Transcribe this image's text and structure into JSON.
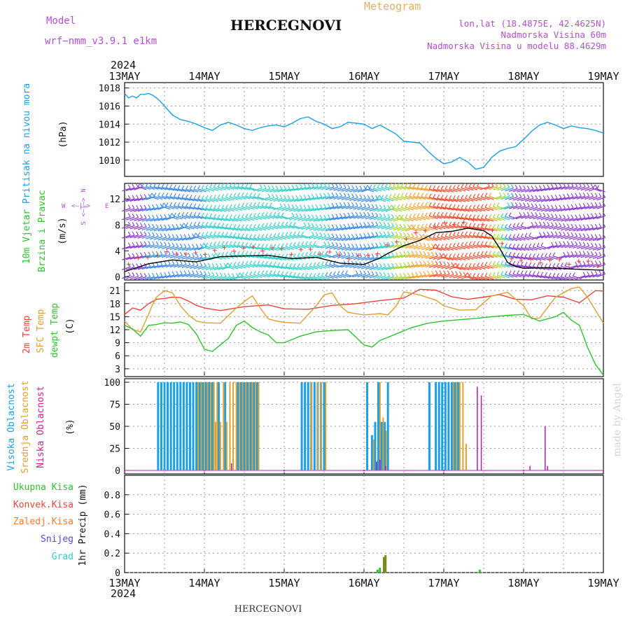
{
  "header": {
    "model_label": "Model",
    "model_name": "wrf−nmm_v3.9.1 e1km",
    "location": "HERCEGNOVI",
    "product": "Meteogram",
    "lonlat": "lon,lat (18.4875E, 42.4625N)",
    "elevation": "Nadmorska Visina 60m",
    "model_elevation": "Nadmorska Visina u modelu 88.4629m"
  },
  "footer": {
    "location": "HERCEGNOVI",
    "watermark": "made by Angel"
  },
  "time_axis": {
    "year": "2024",
    "labels": [
      "13MAY",
      "14MAY",
      "15MAY",
      "16MAY",
      "17MAY",
      "18MAY",
      "19MAY"
    ]
  },
  "wind_compass": {
    "north": "N",
    "west": "W",
    "east": "E",
    "south": "S",
    "arrows_we": "<—|—>",
    "arrows_ns": "<—|—>"
  },
  "colors": {
    "pressure": "#1aa0e6",
    "temp2m": "#e8443a",
    "sfc_temp": "#e0a030",
    "dewpt": "#2ec42e",
    "high_cloud": "#1aa0e6",
    "mid_cloud": "#e0a030",
    "low_cloud": "#b01eb0",
    "total_precip": "#2ec42e",
    "conv_precip": "#e8443a",
    "frozen_precip": "#f07c30",
    "snow": "#4a4ae6",
    "hail": "#33cccc",
    "wind_speed_line": "#000000",
    "gust_marks": "#e8443a",
    "label_purple": "#b050d0",
    "meteogram_orange": "#e0b060"
  },
  "chart_data": [
    {
      "id": "pressure",
      "type": "line",
      "ylabel": "(hPa)",
      "side_label": "Pritisak na nivou mora",
      "ylim": [
        1008.2,
        1018.6
      ],
      "yticks": [
        1010,
        1012,
        1014,
        1016,
        1018
      ],
      "grid": true,
      "series": [
        {
          "color_key": "pressure",
          "x": [
            0,
            0.05,
            0.1,
            0.15,
            0.2,
            0.25,
            0.3,
            0.35,
            0.4,
            0.45,
            0.5,
            0.6,
            0.7,
            0.8,
            0.9,
            1.0,
            1.1,
            1.2,
            1.3,
            1.4,
            1.5,
            1.6,
            1.7,
            1.8,
            1.9,
            2.0,
            2.1,
            2.2,
            2.3,
            2.4,
            2.5,
            2.6,
            2.7,
            2.8,
            2.9,
            3.0,
            3.1,
            3.2,
            3.3,
            3.4,
            3.5,
            3.6,
            3.7,
            3.8,
            3.9,
            4.0,
            4.1,
            4.2,
            4.3,
            4.4,
            4.5,
            4.6,
            4.7,
            4.8,
            4.9,
            5.0,
            5.1,
            5.2,
            5.3,
            5.4,
            5.5,
            5.6,
            5.7,
            5.8,
            5.9,
            6.0
          ],
          "y": [
            1017.4,
            1016.9,
            1017.1,
            1016.9,
            1017.3,
            1017.3,
            1017.4,
            1017.2,
            1016.9,
            1016.5,
            1016.0,
            1015.0,
            1014.5,
            1014.3,
            1014.0,
            1013.6,
            1013.3,
            1013.9,
            1014.2,
            1013.9,
            1013.5,
            1013.3,
            1013.6,
            1013.8,
            1013.9,
            1013.7,
            1014.1,
            1014.6,
            1014.8,
            1014.3,
            1014.0,
            1013.5,
            1013.7,
            1014.2,
            1014.1,
            1014.0,
            1013.5,
            1013.9,
            1013.4,
            1012.9,
            1012.1,
            1012.0,
            1011.9,
            1011.0,
            1010.2,
            1009.6,
            1009.8,
            1010.3,
            1009.8,
            1009.0,
            1009.2,
            1010.3,
            1011.0,
            1011.3,
            1011.5,
            1012.3,
            1013.2,
            1013.9,
            1014.2,
            1013.9,
            1013.5,
            1013.8,
            1013.6,
            1013.5,
            1013.3,
            1013.0
          ]
        }
      ]
    },
    {
      "id": "wind",
      "type": "line",
      "ylabel": "(m/s)",
      "side_label_1": "10m Vjetar",
      "side_label_2": "Brzina i Pravac",
      "ylim": [
        -0.5,
        14.4
      ],
      "yticks": [
        0,
        4,
        8,
        12
      ],
      "grid": false,
      "series": [
        {
          "color_key": "wind_speed_line",
          "x": [
            0,
            0.3,
            0.6,
            0.9,
            1.2,
            1.5,
            1.8,
            2.1,
            2.4,
            2.7,
            3.0,
            3.2,
            3.3,
            3.5,
            3.7,
            3.9,
            4.1,
            4.3,
            4.5,
            4.6,
            4.7,
            4.8,
            4.9,
            5.0,
            5.3,
            5.6,
            6.0
          ],
          "y": [
            0.8,
            2.0,
            2.6,
            2.3,
            3.1,
            3.2,
            3.3,
            2.8,
            3.0,
            2.1,
            1.9,
            2.9,
            3.6,
            4.8,
            5.6,
            6.8,
            7.0,
            7.5,
            7.1,
            6.3,
            4.4,
            2.2,
            1.6,
            1.3,
            1.4,
            1.2,
            1.0
          ]
        }
      ]
    },
    {
      "id": "temperature",
      "type": "line",
      "ylabel": "(C)",
      "side_label_1": "2m Temp",
      "side_label_2": "SFC Temp",
      "side_label_3": "dewpt Temp",
      "ylim": [
        1.2,
        22.8
      ],
      "yticks": [
        3,
        6,
        9,
        12,
        15,
        18,
        21
      ],
      "grid": true,
      "series": [
        {
          "color_key": "temp2m",
          "x": [
            0,
            0.1,
            0.2,
            0.3,
            0.4,
            0.5,
            0.6,
            0.7,
            0.8,
            0.9,
            1.0,
            1.2,
            1.5,
            1.8,
            2.0,
            2.3,
            2.6,
            2.9,
            3.2,
            3.5,
            3.7,
            3.9,
            4.1,
            4.3,
            4.5,
            4.7,
            4.9,
            5.1,
            5.3,
            5.5,
            5.7,
            5.9,
            6.0
          ],
          "y": [
            15.5,
            17.0,
            16.5,
            18.0,
            19.0,
            19.2,
            19.5,
            19.4,
            18.6,
            17.6,
            17.0,
            16.4,
            17.3,
            17.7,
            16.8,
            16.7,
            17.6,
            18.0,
            18.7,
            19.3,
            21.3,
            21.1,
            19.6,
            19.0,
            19.5,
            20.1,
            19.0,
            18.9,
            19.8,
            19.5,
            18.2,
            21.0,
            20.9
          ]
        },
        {
          "color_key": "sfc_temp",
          "x": [
            0,
            0.1,
            0.2,
            0.3,
            0.35,
            0.4,
            0.5,
            0.6,
            0.7,
            0.8,
            0.9,
            1.0,
            1.2,
            1.4,
            1.5,
            1.6,
            1.7,
            1.8,
            1.9,
            2.0,
            2.2,
            2.4,
            2.5,
            2.6,
            2.7,
            2.8,
            3.0,
            3.2,
            3.3,
            3.4,
            3.5,
            3.7,
            3.9,
            4.0,
            4.2,
            4.4,
            4.6,
            4.8,
            5.0,
            5.1,
            5.2,
            5.4,
            5.6,
            5.7,
            5.8,
            6.0
          ],
          "y": [
            14.0,
            12.0,
            11.5,
            15.5,
            17.8,
            19.5,
            21.0,
            20.5,
            17.5,
            15.4,
            14.0,
            13.6,
            13.5,
            17.0,
            18.5,
            19.8,
            17.0,
            14.5,
            14.0,
            13.7,
            13.5,
            17.5,
            20.0,
            20.5,
            17.5,
            16.0,
            15.4,
            15.7,
            15.4,
            17.4,
            20.7,
            20.0,
            18.8,
            17.5,
            16.5,
            16.6,
            19.8,
            20.6,
            17.5,
            14.5,
            14.7,
            19.5,
            21.5,
            21.8,
            19.5,
            13.5
          ]
        },
        {
          "color_key": "dewpt",
          "x": [
            0,
            0.1,
            0.2,
            0.3,
            0.4,
            0.5,
            0.6,
            0.7,
            0.8,
            0.9,
            1.0,
            1.1,
            1.2,
            1.3,
            1.4,
            1.5,
            1.6,
            1.7,
            1.8,
            1.9,
            2.0,
            2.2,
            2.4,
            2.6,
            2.8,
            3.0,
            3.1,
            3.2,
            3.4,
            3.6,
            3.8,
            4.0,
            4.2,
            4.4,
            4.6,
            4.8,
            5.0,
            5.2,
            5.4,
            5.5,
            5.6,
            5.7,
            5.8,
            5.9,
            6.0
          ],
          "y": [
            13.0,
            12.2,
            10.5,
            13.0,
            13.2,
            13.6,
            13.5,
            13.8,
            13.2,
            11.0,
            7.5,
            7.0,
            8.5,
            10.0,
            13.0,
            14.0,
            12.5,
            11.5,
            10.8,
            9.0,
            9.0,
            10.5,
            11.5,
            11.8,
            12.0,
            8.5,
            8.0,
            9.5,
            11.0,
            12.5,
            13.5,
            14.0,
            14.3,
            14.6,
            15.0,
            15.3,
            15.5,
            14.0,
            15.0,
            16.0,
            14.2,
            13.0,
            8.0,
            4.0,
            1.5
          ]
        }
      ]
    },
    {
      "id": "cloud",
      "type": "bar",
      "ylabel": "(%)",
      "side_label_1": "Visoka Oblacnost",
      "side_label_2": "Srednja Oblacnost",
      "side_label_3": "Niska Oblacnost",
      "ylim": [
        -4,
        104
      ],
      "yticks": [
        0,
        25,
        50,
        75,
        100
      ],
      "grid": true,
      "high_cloud": [
        {
          "x": 0.42,
          "y": 100
        },
        {
          "x": 0.46,
          "y": 100
        },
        {
          "x": 0.5,
          "y": 100
        },
        {
          "x": 0.54,
          "y": 100
        },
        {
          "x": 0.58,
          "y": 100
        },
        {
          "x": 0.62,
          "y": 100
        },
        {
          "x": 0.66,
          "y": 100
        },
        {
          "x": 0.7,
          "y": 100
        },
        {
          "x": 0.74,
          "y": 100
        },
        {
          "x": 0.78,
          "y": 100
        },
        {
          "x": 0.82,
          "y": 100
        },
        {
          "x": 0.86,
          "y": 100
        },
        {
          "x": 0.9,
          "y": 100
        },
        {
          "x": 0.94,
          "y": 100
        },
        {
          "x": 0.98,
          "y": 100
        },
        {
          "x": 1.02,
          "y": 100
        },
        {
          "x": 1.06,
          "y": 100
        },
        {
          "x": 1.1,
          "y": 100
        },
        {
          "x": 1.18,
          "y": 100
        },
        {
          "x": 1.26,
          "y": 100
        },
        {
          "x": 1.42,
          "y": 100
        },
        {
          "x": 1.46,
          "y": 100
        },
        {
          "x": 1.5,
          "y": 100
        },
        {
          "x": 1.54,
          "y": 100
        },
        {
          "x": 1.58,
          "y": 100
        },
        {
          "x": 1.62,
          "y": 100
        },
        {
          "x": 1.66,
          "y": 100
        },
        {
          "x": 2.22,
          "y": 100
        },
        {
          "x": 2.26,
          "y": 100
        },
        {
          "x": 2.3,
          "y": 100
        },
        {
          "x": 2.34,
          "y": 100
        },
        {
          "x": 2.38,
          "y": 100
        },
        {
          "x": 2.42,
          "y": 100
        },
        {
          "x": 2.46,
          "y": 100
        },
        {
          "x": 2.5,
          "y": 100
        },
        {
          "x": 3.04,
          "y": 100
        },
        {
          "x": 3.1,
          "y": 40
        },
        {
          "x": 3.14,
          "y": 55
        },
        {
          "x": 3.18,
          "y": 100
        },
        {
          "x": 3.22,
          "y": 55
        },
        {
          "x": 3.26,
          "y": 55
        },
        {
          "x": 3.3,
          "y": 100
        },
        {
          "x": 3.82,
          "y": 100
        },
        {
          "x": 3.9,
          "y": 100
        },
        {
          "x": 3.94,
          "y": 100
        },
        {
          "x": 3.98,
          "y": 100
        },
        {
          "x": 4.02,
          "y": 100
        },
        {
          "x": 4.06,
          "y": 100
        },
        {
          "x": 4.1,
          "y": 100
        },
        {
          "x": 4.14,
          "y": 100
        },
        {
          "x": 4.18,
          "y": 100
        }
      ],
      "mid_cloud": [
        {
          "x": 0.92,
          "y": 100
        },
        {
          "x": 0.96,
          "y": 100
        },
        {
          "x": 1.0,
          "y": 100
        },
        {
          "x": 1.04,
          "y": 100
        },
        {
          "x": 1.08,
          "y": 100
        },
        {
          "x": 1.12,
          "y": 100
        },
        {
          "x": 1.14,
          "y": 55
        },
        {
          "x": 1.16,
          "y": 100
        },
        {
          "x": 1.2,
          "y": 55
        },
        {
          "x": 1.24,
          "y": 100
        },
        {
          "x": 1.28,
          "y": 55
        },
        {
          "x": 1.32,
          "y": 100
        },
        {
          "x": 1.36,
          "y": 100
        },
        {
          "x": 1.4,
          "y": 100
        },
        {
          "x": 1.44,
          "y": 100
        },
        {
          "x": 1.48,
          "y": 100
        },
        {
          "x": 1.52,
          "y": 100
        },
        {
          "x": 1.56,
          "y": 100
        },
        {
          "x": 1.6,
          "y": 100
        },
        {
          "x": 1.64,
          "y": 100
        },
        {
          "x": 1.68,
          "y": 100
        },
        {
          "x": 2.34,
          "y": 100
        },
        {
          "x": 2.42,
          "y": 100
        },
        {
          "x": 2.46,
          "y": 100
        },
        {
          "x": 2.52,
          "y": 100
        },
        {
          "x": 3.12,
          "y": 35
        },
        {
          "x": 3.2,
          "y": 100
        },
        {
          "x": 3.24,
          "y": 60
        },
        {
          "x": 3.28,
          "y": 45
        },
        {
          "x": 4.12,
          "y": 100
        },
        {
          "x": 4.16,
          "y": 100
        },
        {
          "x": 4.2,
          "y": 100
        },
        {
          "x": 4.24,
          "y": 100
        },
        {
          "x": 4.28,
          "y": 30
        }
      ],
      "low_cloud": [
        {
          "x": 1.34,
          "y": 8
        },
        {
          "x": 3.16,
          "y": 10
        },
        {
          "x": 3.2,
          "y": 12
        },
        {
          "x": 3.27,
          "y": 5
        },
        {
          "x": 4.42,
          "y": 95
        },
        {
          "x": 4.47,
          "y": 85
        },
        {
          "x": 5.08,
          "y": 5
        },
        {
          "x": 5.27,
          "y": 50
        },
        {
          "x": 5.3,
          "y": 5
        }
      ]
    },
    {
      "id": "precip",
      "type": "bar",
      "ylabel": "1hr Precip (mm)",
      "ylim": [
        0,
        1.0
      ],
      "yticks": [
        0,
        0.2,
        0.4,
        0.6,
        0.8
      ],
      "grid": true,
      "legend": [
        "Ukupna Kisa",
        "Konvek.Kisa",
        "Zaledj.Kisa",
        "Snijeg",
        "Grad"
      ],
      "total_rain": [
        {
          "x": 3.17,
          "y": 0.03
        },
        {
          "x": 3.2,
          "y": 0.05
        },
        {
          "x": 3.25,
          "y": 0.16
        },
        {
          "x": 3.27,
          "y": 0.18
        },
        {
          "x": 4.45,
          "y": 0.03
        }
      ]
    }
  ]
}
